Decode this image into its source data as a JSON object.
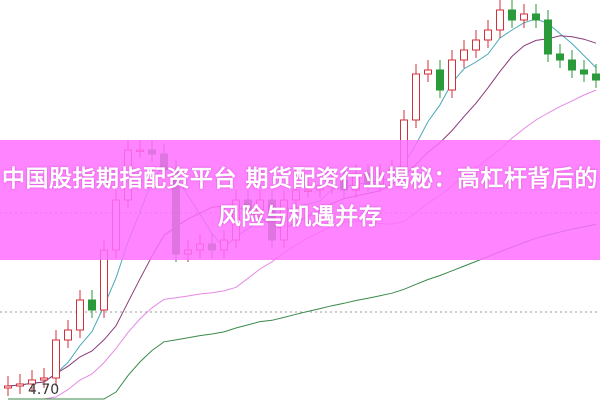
{
  "chart_data": {
    "type": "candlestick",
    "price_label": "4.70",
    "close": [
      4.72,
      4.73,
      4.75,
      4.76,
      4.95,
      5.0,
      5.15,
      5.1,
      5.4,
      5.65,
      5.9,
      5.9,
      5.88,
      5.8,
      5.38,
      5.4,
      5.43,
      5.4,
      5.45,
      5.65,
      5.6,
      5.65,
      5.45,
      5.65,
      5.7,
      5.7,
      5.72,
      5.75,
      5.7,
      5.78,
      5.73,
      5.78,
      5.8,
      6.05,
      6.28,
      6.3,
      6.2,
      6.35,
      6.4,
      6.45,
      6.5,
      6.6,
      6.55,
      6.58,
      6.55,
      6.38,
      6.35,
      6.3,
      6.28,
      6.25
    ],
    "moving_averages": [
      5,
      10,
      20,
      60
    ],
    "colors": {
      "up": "#d0303a",
      "down": "#2a9a3a",
      "ma5": "#4aa9b8",
      "ma10": "#8a3a7a",
      "ma20": "#e58ae5",
      "ma60": "#3a8a4a",
      "grid": "#999999"
    },
    "grid": true
  },
  "banner": {
    "title": "中国股指期指配资平台 期货配资行业揭秘：高杠杆背后的风险与机遇并存",
    "color": "#ff6eff"
  }
}
